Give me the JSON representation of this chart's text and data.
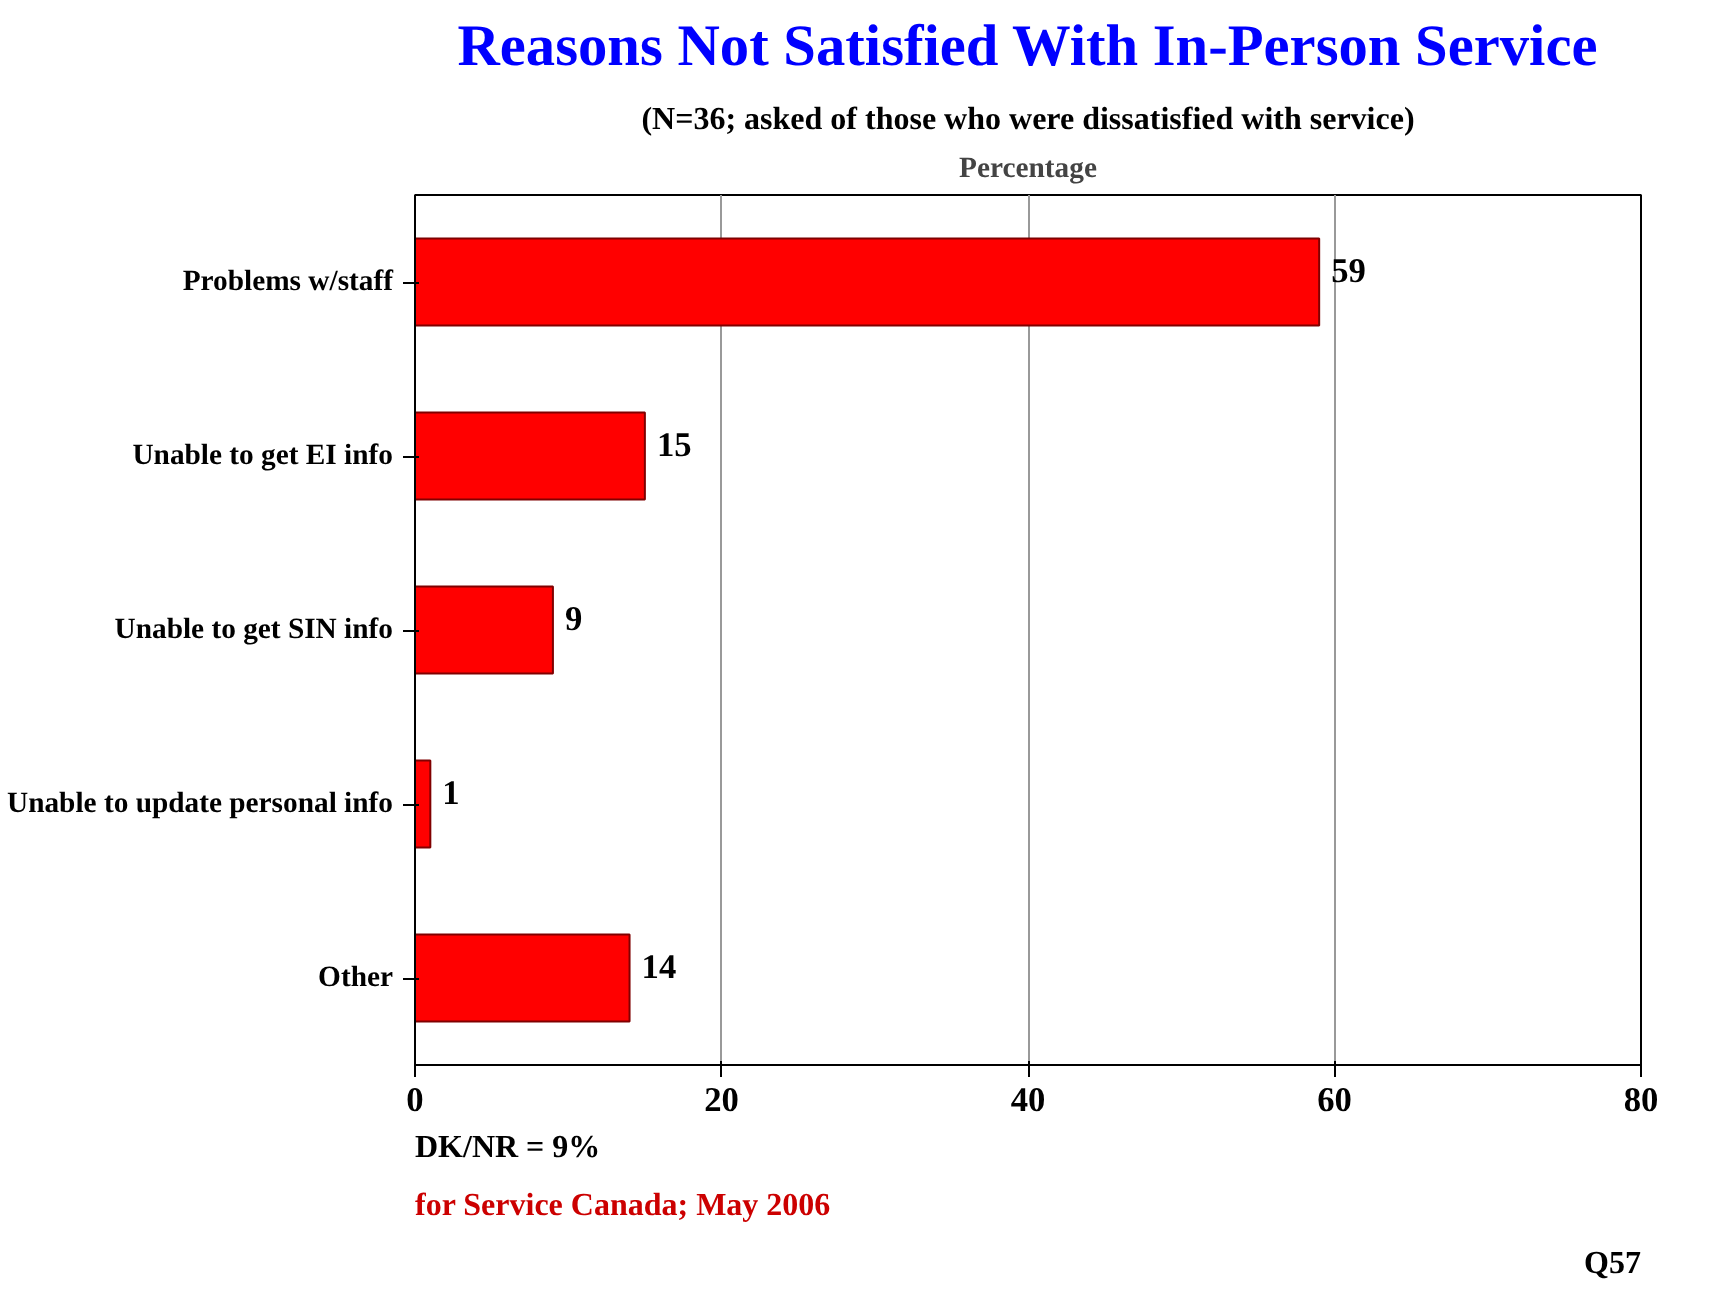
{
  "chart_data": {
    "type": "bar",
    "orientation": "horizontal",
    "title": "Reasons Not Satisfied With In-Person Service",
    "subtitle": "(N=36; asked of those who were dissatisfied with service)",
    "xlabel": "Percentage",
    "categories": [
      "Problems w/staff",
      "Unable to get EI info",
      "Unable to get SIN info",
      "Unable to update personal info",
      "Other"
    ],
    "values": [
      59,
      15,
      9,
      1,
      14
    ],
    "color": "#ff0000",
    "data_labels": true,
    "xlim": [
      0,
      80
    ],
    "xticks": [
      0,
      20,
      40,
      60,
      80
    ],
    "grid": "x",
    "annotations": [
      "DK/NR = 9%",
      "for Service Canada; May 2006",
      "Q57"
    ]
  }
}
